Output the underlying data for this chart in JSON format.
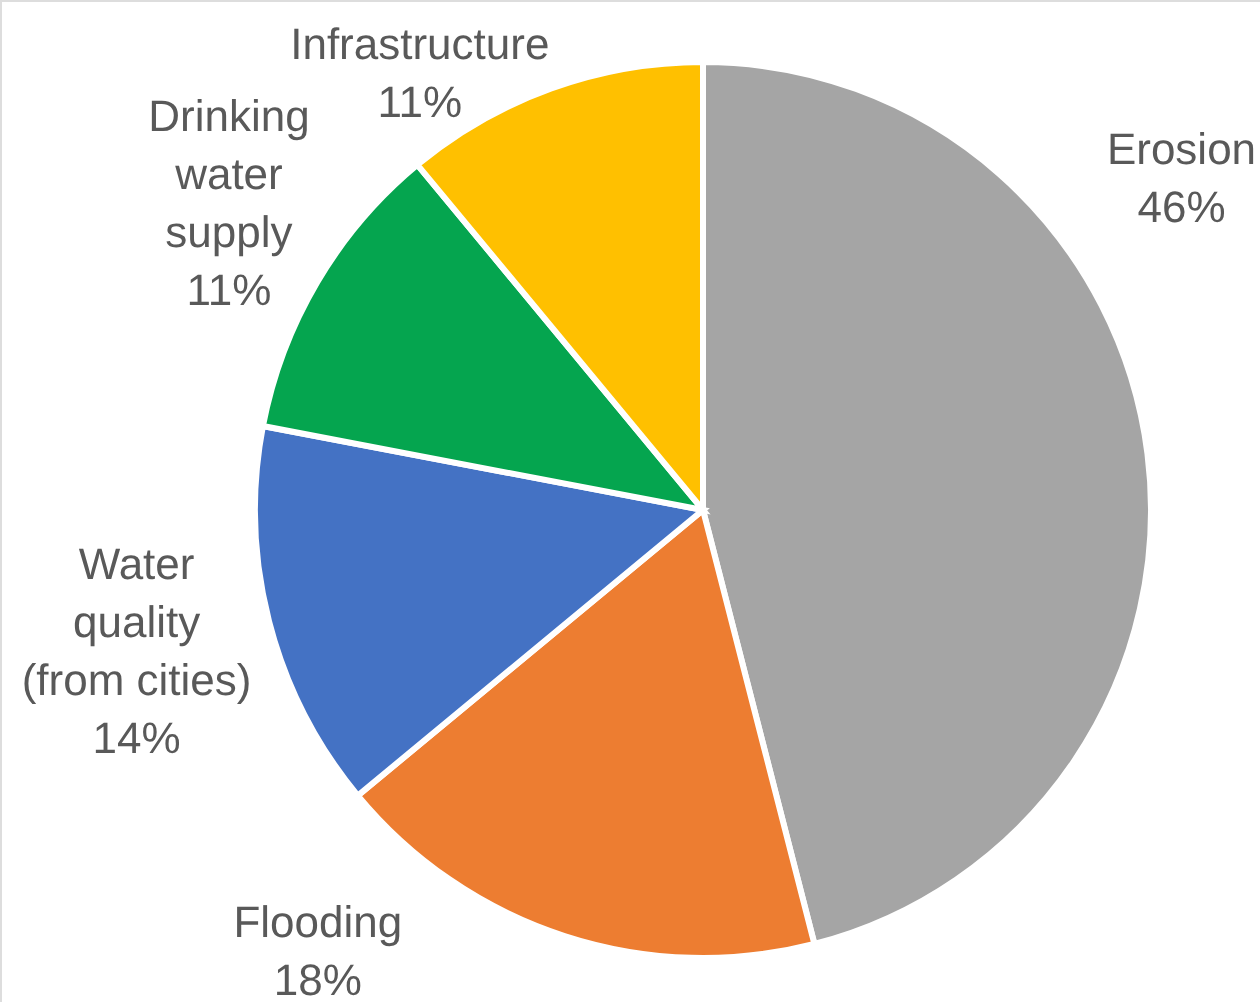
{
  "chart_data": {
    "type": "pie",
    "categories": [
      "Erosion",
      "Flooding",
      "Water quality (from cities)",
      "Drinking water supply",
      "Infrastructure"
    ],
    "values": [
      46,
      18,
      14,
      11,
      11
    ],
    "colors": [
      "#a5a5a5",
      "#ed7d31",
      "#4472c4",
      "#05a54f",
      "#ffc000"
    ],
    "value_labels": [
      "46%",
      "18%",
      "14%",
      "11%",
      "11%"
    ]
  }
}
